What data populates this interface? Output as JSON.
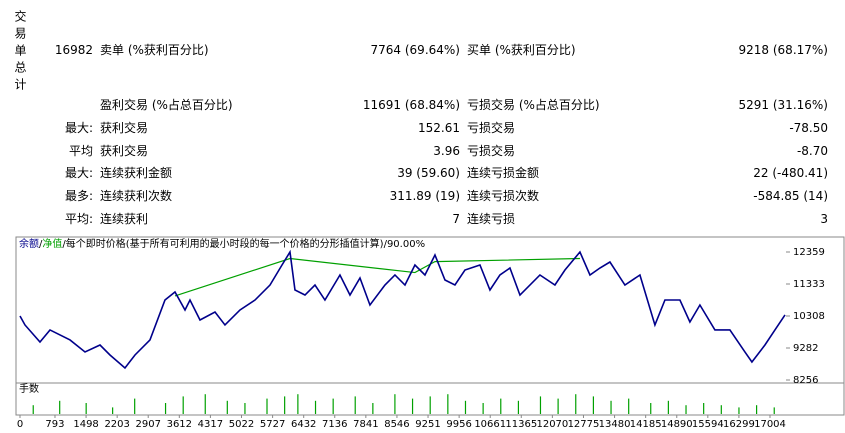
{
  "report": {
    "section_label": "交易单总计",
    "rows": [
      [
        "16982",
        "卖单 (%获利百分比)",
        "7764 (69.64%)",
        "买单 (%获利百分比)",
        "9218 (68.17%)"
      ],
      [
        null,
        "盈利交易 (%占总百分比)",
        "11691 (68.84%)",
        "亏损交易 (%占总百分比)",
        "5291 (31.16%)"
      ],
      [
        "最大:",
        "获利交易",
        "152.61",
        "亏损交易",
        "-78.50"
      ],
      [
        "平均",
        "获利交易",
        "3.96",
        "亏损交易",
        "-8.70"
      ],
      [
        "最大:",
        "连续获利金额",
        "39 (59.60)",
        "连续亏损金额",
        "22 (-480.41)"
      ],
      [
        "最多:",
        "连续获利次数",
        "311.89 (19)",
        "连续亏损次数",
        "-584.85 (14)"
      ],
      [
        "平均:",
        "连续获利",
        "7",
        "连续亏损",
        "3"
      ]
    ]
  },
  "chart_data": {
    "type": "line",
    "caption_separator": "/",
    "caption": "每个即时价格(基于所有可利用的最小时段的每一个价格的分形插值计算)",
    "caption_percent": "90.00%",
    "xlim": [
      0,
      17344
    ],
    "ylim": [
      8256,
      12359
    ],
    "xticks": [
      0,
      793,
      1498,
      2203,
      2907,
      3612,
      4317,
      5022,
      5727,
      6432,
      7136,
      7841,
      8546,
      9251,
      9956,
      10661,
      11365,
      12070,
      12775,
      13480,
      14185,
      14890,
      15594,
      16299,
      17004
    ],
    "yticks": [
      8256,
      9282,
      10308,
      11333,
      12359
    ],
    "series": [
      {
        "name": "余额",
        "color": "#00008b",
        "x": [
          0,
          113,
          453,
          680,
          1134,
          1474,
          1814,
          2040,
          2380,
          2607,
          2947,
          3287,
          3514,
          3741,
          3854,
          4081,
          4421,
          4647,
          4988,
          5328,
          5668,
          5940,
          6121,
          6234,
          6461,
          6688,
          6914,
          7254,
          7481,
          7708,
          7934,
          8274,
          8501,
          8728,
          8954,
          9181,
          9408,
          9635,
          9861,
          10088,
          10428,
          10655,
          10881,
          11108,
          11335,
          11788,
          12128,
          12355,
          12695,
          12922,
          13148,
          13375,
          13715,
          14055,
          14395,
          14622,
          14962,
          15188,
          15415,
          15755,
          16095,
          16435,
          16594,
          16889,
          17116,
          17344
        ],
        "values": [
          10308,
          10020,
          9475,
          9860,
          9540,
          9154,
          9378,
          9058,
          8641,
          9058,
          9540,
          10820,
          11077,
          10500,
          10820,
          10180,
          10436,
          10020,
          10500,
          10820,
          11301,
          11942,
          12359,
          11141,
          10980,
          11301,
          10820,
          11622,
          10980,
          11525,
          10660,
          11301,
          11622,
          11301,
          11942,
          11622,
          12263,
          11461,
          11301,
          11782,
          11942,
          11141,
          11622,
          11846,
          10980,
          11622,
          11301,
          11782,
          12359,
          11622,
          11846,
          12038,
          11301,
          11622,
          10020,
          10820,
          10820,
          10116,
          10660,
          9860,
          9860,
          9154,
          8834,
          9378,
          9860,
          10340
        ]
      },
      {
        "name": "净值",
        "color": "#00a000",
        "x": [
          3514,
          6121,
          8954,
          9408,
          12695
        ],
        "values": [
          10950,
          12150,
          11700,
          12050,
          12150
        ]
      }
    ],
    "volume": {
      "name": "手数",
      "color": "#00a000",
      "ylim": [
        0,
        1
      ],
      "x": [
        300,
        900,
        1500,
        2100,
        2600,
        3300,
        3700,
        4200,
        4700,
        5100,
        5600,
        6000,
        6300,
        6700,
        7100,
        7600,
        8000,
        8500,
        8900,
        9300,
        9700,
        10100,
        10500,
        10900,
        11300,
        11800,
        12200,
        12600,
        13000,
        13400,
        13800,
        14300,
        14700,
        15100,
        15500,
        15900,
        16300,
        16700,
        17100
      ],
      "values": [
        0.4,
        0.6,
        0.5,
        0.3,
        0.7,
        0.5,
        0.8,
        0.9,
        0.6,
        0.5,
        0.7,
        0.8,
        0.9,
        0.6,
        0.7,
        0.8,
        0.5,
        0.9,
        0.7,
        0.8,
        0.9,
        0.6,
        0.5,
        0.7,
        0.6,
        0.8,
        0.7,
        0.9,
        0.8,
        0.6,
        0.7,
        0.5,
        0.6,
        0.4,
        0.5,
        0.4,
        0.3,
        0.4,
        0.3
      ]
    }
  }
}
